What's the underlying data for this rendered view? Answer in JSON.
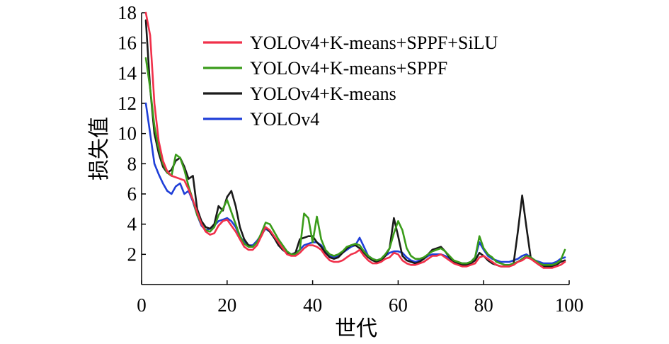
{
  "chart_data": {
    "type": "line",
    "title": "",
    "xlabel": "世代",
    "ylabel": "损失值",
    "xlim": [
      0,
      100
    ],
    "ylim": [
      0,
      18
    ],
    "xticks": [
      0,
      20,
      40,
      60,
      80,
      100
    ],
    "yticks": [
      2,
      4,
      6,
      8,
      10,
      12,
      14,
      16,
      18
    ],
    "legend_position": "top-right",
    "grid": false,
    "x": [
      1,
      2,
      3,
      4,
      5,
      6,
      7,
      8,
      9,
      10,
      11,
      12,
      13,
      14,
      15,
      16,
      17,
      18,
      19,
      20,
      21,
      22,
      23,
      24,
      25,
      26,
      27,
      28,
      29,
      30,
      31,
      32,
      33,
      34,
      35,
      36,
      37,
      38,
      39,
      40,
      41,
      42,
      43,
      44,
      45,
      46,
      47,
      48,
      49,
      50,
      51,
      52,
      53,
      54,
      55,
      56,
      57,
      58,
      59,
      60,
      61,
      62,
      63,
      64,
      65,
      66,
      67,
      68,
      69,
      70,
      71,
      72,
      73,
      74,
      75,
      76,
      77,
      78,
      79,
      80,
      81,
      82,
      83,
      84,
      85,
      86,
      87,
      88,
      89,
      90,
      91,
      92,
      93,
      94,
      95,
      96,
      97,
      98,
      99
    ],
    "series": [
      {
        "name": "YOLOv4+K-means+SPPF+SiLU",
        "color": "#f0304a",
        "values": [
          18.0,
          16.5,
          12.0,
          9.5,
          8.2,
          7.5,
          7.2,
          7.1,
          7.0,
          6.9,
          6.3,
          5.6,
          4.8,
          4.0,
          3.5,
          3.3,
          3.4,
          3.9,
          4.2,
          4.3,
          3.9,
          3.5,
          3.0,
          2.5,
          2.3,
          2.3,
          2.6,
          3.2,
          3.8,
          3.6,
          3.2,
          2.8,
          2.4,
          2.0,
          1.9,
          1.9,
          2.1,
          2.4,
          2.6,
          2.6,
          2.5,
          2.3,
          1.9,
          1.6,
          1.5,
          1.5,
          1.6,
          1.8,
          2.0,
          2.1,
          2.3,
          1.9,
          1.6,
          1.4,
          1.4,
          1.5,
          1.7,
          1.8,
          2.1,
          2.0,
          1.6,
          1.4,
          1.3,
          1.3,
          1.4,
          1.5,
          1.7,
          1.9,
          1.9,
          2.0,
          1.8,
          1.6,
          1.4,
          1.3,
          1.2,
          1.2,
          1.3,
          1.4,
          1.8,
          1.9,
          1.7,
          1.5,
          1.3,
          1.2,
          1.2,
          1.2,
          1.3,
          1.5,
          1.6,
          1.8,
          1.7,
          1.5,
          1.3,
          1.1,
          1.1,
          1.1,
          1.2,
          1.3,
          1.5
        ]
      },
      {
        "name": "YOLOv4+K-means+SPPF",
        "color": "#3a9c1a",
        "values": [
          15.0,
          13.0,
          10.5,
          9.0,
          8.0,
          7.4,
          7.2,
          8.6,
          8.4,
          7.6,
          6.5,
          5.6,
          4.6,
          4.0,
          3.6,
          3.5,
          3.8,
          4.6,
          5.0,
          5.6,
          4.8,
          4.0,
          3.2,
          2.7,
          2.5,
          2.5,
          2.8,
          3.4,
          4.1,
          4.0,
          3.5,
          3.0,
          2.6,
          2.2,
          2.0,
          2.0,
          2.3,
          4.7,
          4.4,
          2.8,
          4.5,
          3.0,
          2.3,
          2.0,
          1.9,
          2.0,
          2.2,
          2.5,
          2.6,
          2.7,
          2.6,
          2.2,
          1.9,
          1.7,
          1.6,
          1.7,
          2.0,
          2.4,
          3.4,
          4.2,
          3.6,
          2.4,
          1.9,
          1.7,
          1.7,
          1.8,
          2.0,
          2.2,
          2.3,
          2.4,
          2.2,
          1.9,
          1.6,
          1.5,
          1.4,
          1.4,
          1.5,
          1.8,
          3.2,
          2.4,
          2.0,
          1.8,
          1.5,
          1.4,
          1.3,
          1.3,
          1.4,
          1.5,
          1.7,
          1.9,
          1.8,
          1.6,
          1.4,
          1.3,
          1.3,
          1.3,
          1.4,
          1.6,
          2.3
        ]
      },
      {
        "name": "YOLOv4+K-means",
        "color": "#1a1a1a",
        "values": [
          17.5,
          13.0,
          10.0,
          8.7,
          7.8,
          7.4,
          7.6,
          8.2,
          8.4,
          7.8,
          7.0,
          7.2,
          5.0,
          4.2,
          3.8,
          3.7,
          4.0,
          5.2,
          4.9,
          5.8,
          6.2,
          5.2,
          3.8,
          3.0,
          2.6,
          2.5,
          2.8,
          3.2,
          3.8,
          3.5,
          3.1,
          2.6,
          2.3,
          2.1,
          2.0,
          2.1,
          3.0,
          3.1,
          3.2,
          3.2,
          2.8,
          2.5,
          2.1,
          1.8,
          1.7,
          1.8,
          2.1,
          2.4,
          2.6,
          2.6,
          2.4,
          2.1,
          1.8,
          1.6,
          1.5,
          1.6,
          1.9,
          2.4,
          4.4,
          3.2,
          1.9,
          1.6,
          1.5,
          1.4,
          1.5,
          1.7,
          2.0,
          2.3,
          2.4,
          2.5,
          2.2,
          1.8,
          1.5,
          1.4,
          1.3,
          1.3,
          1.4,
          1.6,
          2.1,
          1.9,
          1.6,
          1.4,
          1.3,
          1.2,
          1.2,
          1.2,
          1.4,
          3.5,
          5.9,
          3.8,
          1.8,
          1.5,
          1.3,
          1.2,
          1.2,
          1.2,
          1.3,
          1.5,
          1.6
        ]
      },
      {
        "name": "YOLOv4",
        "color": "#1f3fd8",
        "values": [
          12.0,
          10.0,
          8.0,
          7.3,
          6.7,
          6.2,
          6.0,
          6.5,
          6.7,
          6.0,
          6.2,
          5.5,
          4.6,
          3.9,
          3.6,
          3.7,
          3.9,
          4.2,
          4.3,
          4.4,
          4.2,
          3.8,
          3.2,
          2.8,
          2.6,
          2.6,
          2.9,
          3.3,
          3.7,
          3.5,
          3.1,
          2.7,
          2.3,
          2.1,
          2.0,
          2.1,
          2.3,
          2.6,
          2.7,
          2.8,
          2.8,
          2.6,
          2.2,
          1.9,
          1.8,
          1.9,
          2.1,
          2.3,
          2.5,
          2.6,
          3.1,
          2.5,
          1.9,
          1.7,
          1.6,
          1.7,
          1.9,
          2.1,
          2.2,
          2.2,
          2.1,
          1.8,
          1.6,
          1.5,
          1.6,
          1.7,
          1.9,
          2.0,
          2.0,
          2.0,
          1.9,
          1.7,
          1.5,
          1.4,
          1.4,
          1.4,
          1.5,
          1.8,
          2.8,
          2.3,
          1.9,
          1.7,
          1.6,
          1.5,
          1.5,
          1.5,
          1.6,
          1.7,
          1.9,
          2.0,
          1.8,
          1.6,
          1.5,
          1.4,
          1.4,
          1.4,
          1.5,
          1.7,
          1.8
        ]
      }
    ]
  }
}
